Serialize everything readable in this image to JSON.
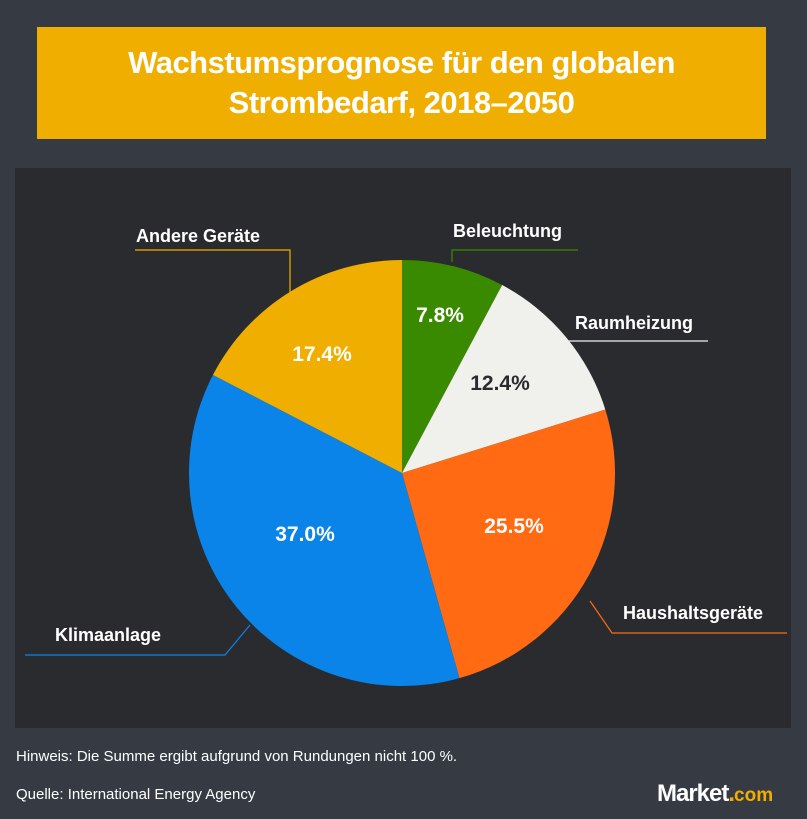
{
  "title": "Wachstumsprognose für den globalen Strombedarf, 2018–2050",
  "chart_data": {
    "type": "pie",
    "title": "Wachstumsprognose für den globalen Strombedarf, 2018–2050",
    "slices": [
      {
        "label": "Beleuchtung",
        "value": 7.8,
        "value_label": "7.8%",
        "color": "#3a8a00",
        "text_color": "#ffffff"
      },
      {
        "label": "Raumheizung",
        "value": 12.4,
        "value_label": "12.4%",
        "color": "#f0f0ec",
        "text_color": "#2a2b2e"
      },
      {
        "label": "Haushaltsgeräte",
        "value": 25.5,
        "value_label": "25.5%",
        "color": "#ff6a13",
        "text_color": "#ffffff"
      },
      {
        "label": "Klimaanlage",
        "value": 37.0,
        "value_label": "37.0%",
        "color": "#0a84e8",
        "text_color": "#ffffff"
      },
      {
        "label": "Andere Geräte",
        "value": 17.4,
        "value_label": "17.4%",
        "color": "#f0ae00",
        "text_color": "#ffffff"
      }
    ],
    "start": "top",
    "direction": "clockwise"
  },
  "footer": {
    "note": "Hinweis: Die Summe ergibt aufgrund von Rundungen nicht 100 %.",
    "source": "Quelle: International Energy Agency"
  },
  "logo": {
    "text": "Market",
    "dot": ".",
    "suffix": "com"
  },
  "colors": {
    "background": "#363a43",
    "panel": "#2a2b2e",
    "title_box": "#f0ae00"
  }
}
